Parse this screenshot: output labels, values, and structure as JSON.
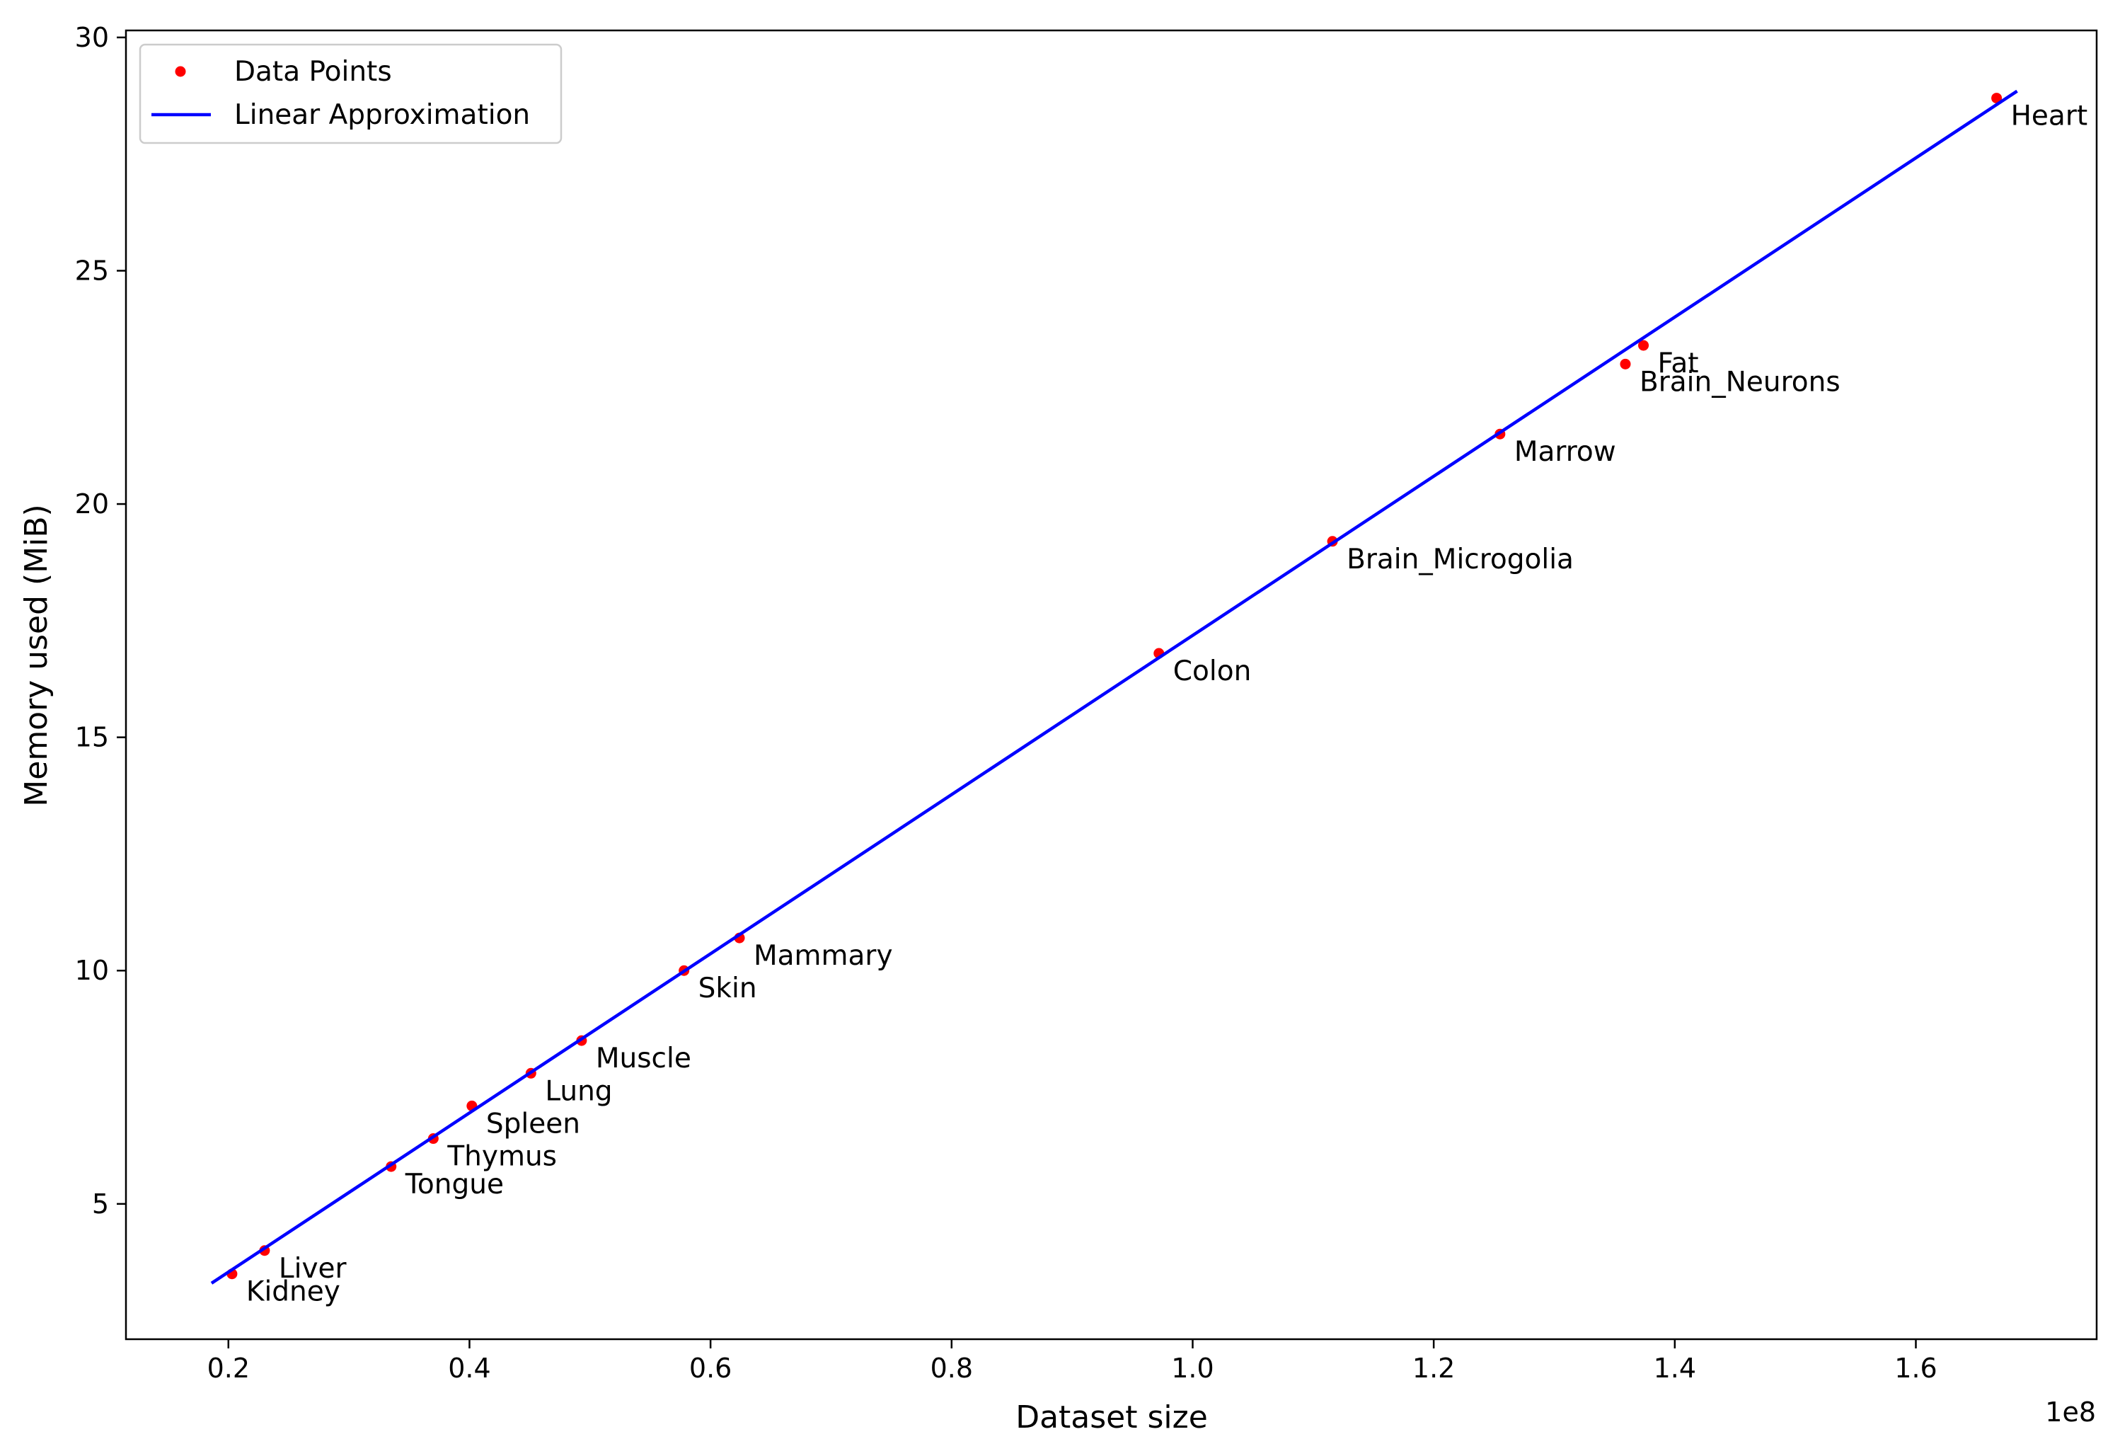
{
  "chart_data": {
    "type": "scatter",
    "title": "",
    "xlabel": "Dataset size",
    "ylabel": "Memory used (MiB)",
    "x_offset_label": "1e8",
    "xlim": [
      0.115,
      1.75
    ],
    "ylim": [
      2.1,
      30.15
    ],
    "x_ticks": [
      0.2,
      0.4,
      0.6,
      0.8,
      1.0,
      1.2,
      1.4,
      1.6
    ],
    "x_tick_labels": [
      "0.2",
      "0.4",
      "0.6",
      "0.8",
      "1.0",
      "1.2",
      "1.4",
      "1.6"
    ],
    "y_ticks": [
      5,
      10,
      15,
      20,
      25,
      30
    ],
    "y_tick_labels": [
      "5",
      "10",
      "15",
      "20",
      "25",
      "30"
    ],
    "grid": false,
    "legend": {
      "position": "top-left",
      "entries": [
        "Data Points",
        "Linear Approximation"
      ]
    },
    "series": [
      {
        "name": "Data Points",
        "kind": "scatter",
        "color": "#ff0000",
        "points": [
          {
            "label": "Kidney",
            "x": 0.203,
            "y": 3.5
          },
          {
            "label": "Liver",
            "x": 0.23,
            "y": 4.0
          },
          {
            "label": "Tongue",
            "x": 0.335,
            "y": 5.8
          },
          {
            "label": "Thymus",
            "x": 0.37,
            "y": 6.4
          },
          {
            "label": "Spleen",
            "x": 0.402,
            "y": 7.1
          },
          {
            "label": "Lung",
            "x": 0.451,
            "y": 7.8
          },
          {
            "label": "Muscle",
            "x": 0.493,
            "y": 8.5
          },
          {
            "label": "Skin",
            "x": 0.578,
            "y": 10.0
          },
          {
            "label": "Mammary",
            "x": 0.624,
            "y": 10.7
          },
          {
            "label": "Colon",
            "x": 0.972,
            "y": 16.8
          },
          {
            "label": "Brain_Microgolia",
            "x": 1.116,
            "y": 19.2
          },
          {
            "label": "Marrow",
            "x": 1.255,
            "y": 21.5
          },
          {
            "label": "Brain_Neurons",
            "x": 1.359,
            "y": 23.0
          },
          {
            "label": "Fat",
            "x": 1.374,
            "y": 23.4
          },
          {
            "label": "Heart",
            "x": 1.667,
            "y": 28.7
          }
        ]
      },
      {
        "name": "Linear Approximation",
        "kind": "line",
        "color": "#0000ff",
        "x": [
          0.186,
          1.684
        ],
        "y": [
          3.3,
          28.85
        ]
      }
    ]
  }
}
